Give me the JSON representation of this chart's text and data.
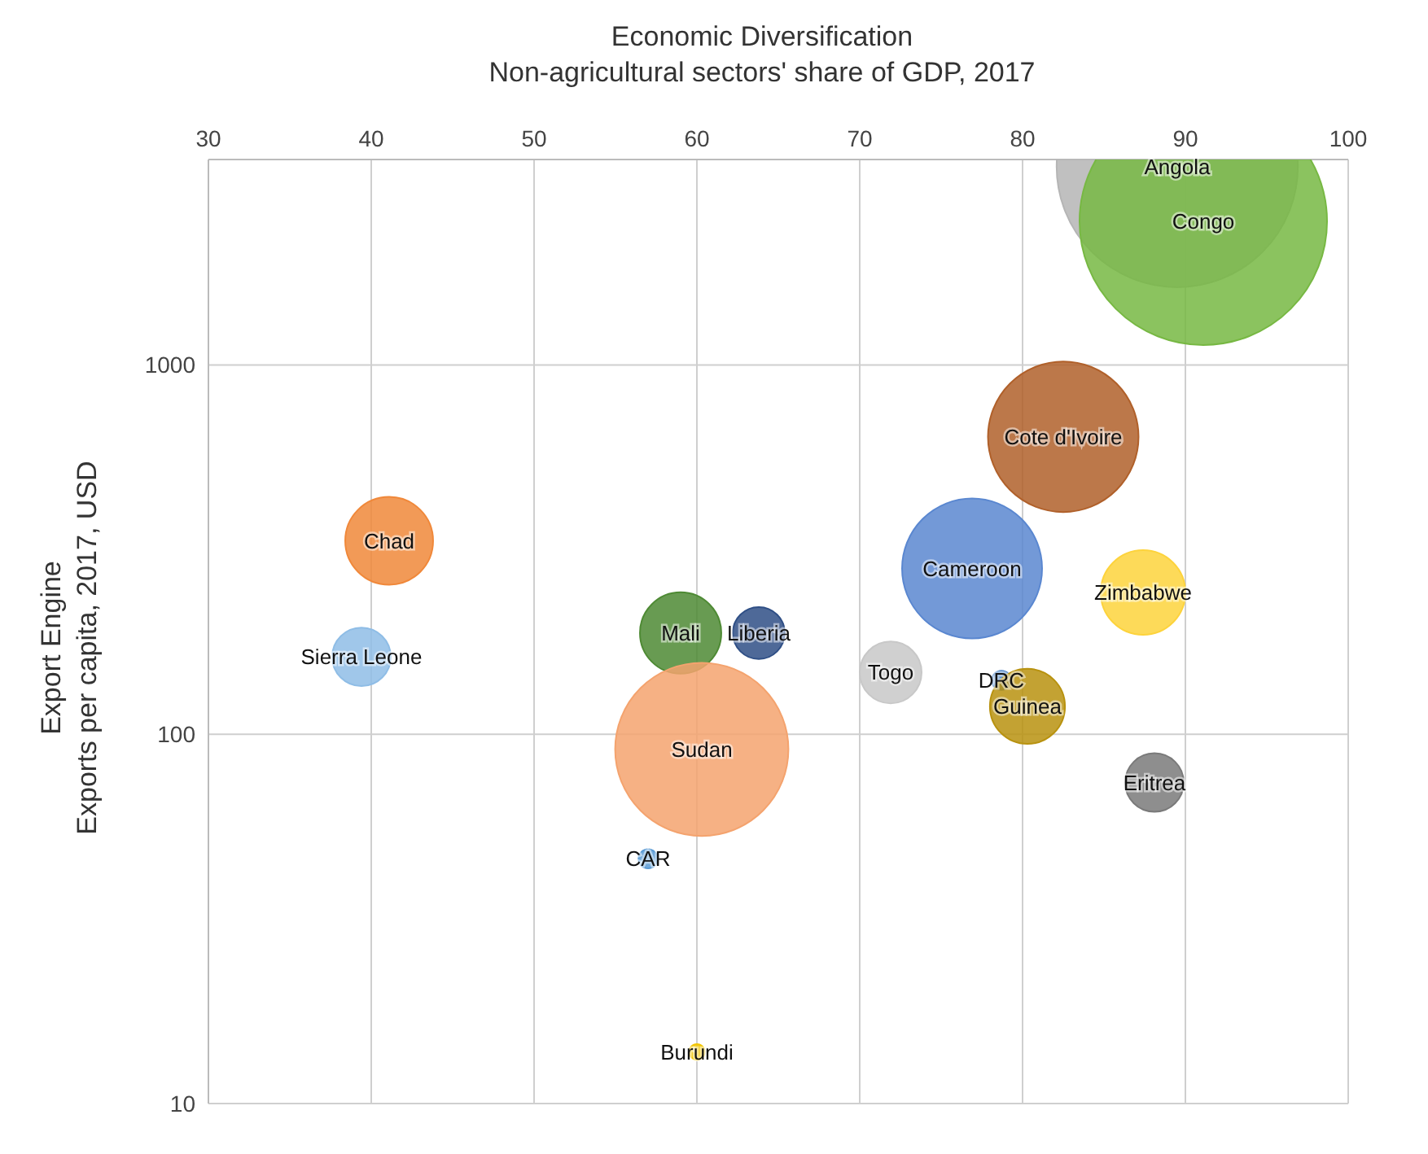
{
  "chart_data": {
    "type": "bubble",
    "xlabel": "Economic Diversification\nNon-agricultural sectors' share of GDP, 2017",
    "ylabel": "Export Engine\nExports per capita, 2017, USD",
    "xlim": [
      30,
      100
    ],
    "xticks": [
      30,
      40,
      50,
      60,
      70,
      80,
      90,
      100
    ],
    "ylim": [
      10,
      3600
    ],
    "yticks": [
      10,
      100,
      1000
    ],
    "log": "y",
    "grid": true,
    "legend": false,
    "series": [
      {
        "name": "Chad",
        "color": "#f0883a",
        "x": [
          41.1
        ],
        "values": [
          334
        ],
        "sizes": [
          0.126
        ]
      },
      {
        "name": "Sierra Leone",
        "color": "#8fbde6",
        "x": [
          39.4
        ],
        "values": [
          162
        ],
        "sizes": [
          0.056
        ]
      },
      {
        "name": "Mali",
        "color": "#4e8a34",
        "x": [
          59.0
        ],
        "values": [
          188
        ],
        "sizes": [
          0.108
        ]
      },
      {
        "name": "Liberia",
        "color": "#2f4f86",
        "x": [
          63.8
        ],
        "values": [
          188
        ],
        "sizes": [
          0.044
        ]
      },
      {
        "name": "Sudan",
        "color": "#f4a36e",
        "x": [
          60.3
        ],
        "values": [
          91
        ],
        "sizes": [
          0.49
        ]
      },
      {
        "name": "CAR",
        "color": "#5b9bd5",
        "x": [
          57.0
        ],
        "values": [
          46
        ],
        "sizes": [
          0.006
        ]
      },
      {
        "name": "Burundi",
        "color": "#f2c500",
        "x": [
          60.0
        ],
        "values": [
          13.8
        ],
        "sizes": [
          0.004
        ]
      },
      {
        "name": "Togo",
        "color": "#c8c8c8",
        "x": [
          71.9
        ],
        "values": [
          147
        ],
        "sizes": [
          0.0625
        ]
      },
      {
        "name": "DRC",
        "color": "#3a78c0",
        "x": [
          78.7
        ],
        "values": [
          140
        ],
        "sizes": [
          0.006
        ]
      },
      {
        "name": "Guinea",
        "color": "#b8920f",
        "x": [
          80.3
        ],
        "values": [
          119
        ],
        "sizes": [
          0.092
        ]
      },
      {
        "name": "Eritrea",
        "color": "#7a7a7a",
        "x": [
          88.1
        ],
        "values": [
          74
        ],
        "sizes": [
          0.056
        ]
      },
      {
        "name": "Zimbabwe",
        "color": "#fdd33c",
        "x": [
          87.4
        ],
        "values": [
          242
        ],
        "sizes": [
          0.117
        ]
      },
      {
        "name": "Cameroon",
        "color": "#5a87d0",
        "x": [
          76.9
        ],
        "values": [
          281
        ],
        "sizes": [
          0.32
        ]
      },
      {
        "name": "Cote d'Ivoire",
        "color": "#b0602a",
        "x": [
          82.5
        ],
        "values": [
          639
        ],
        "sizes": [
          0.37
        ]
      },
      {
        "name": "Angola",
        "color": "#b5b5b5",
        "x": [
          89.5
        ],
        "values": [
          3444
        ],
        "sizes": [
          0.95
        ]
      },
      {
        "name": "Congo",
        "color": "#77b843",
        "x": [
          91.1
        ],
        "values": [
          2449
        ],
        "sizes": [
          1
        ]
      }
    ]
  }
}
